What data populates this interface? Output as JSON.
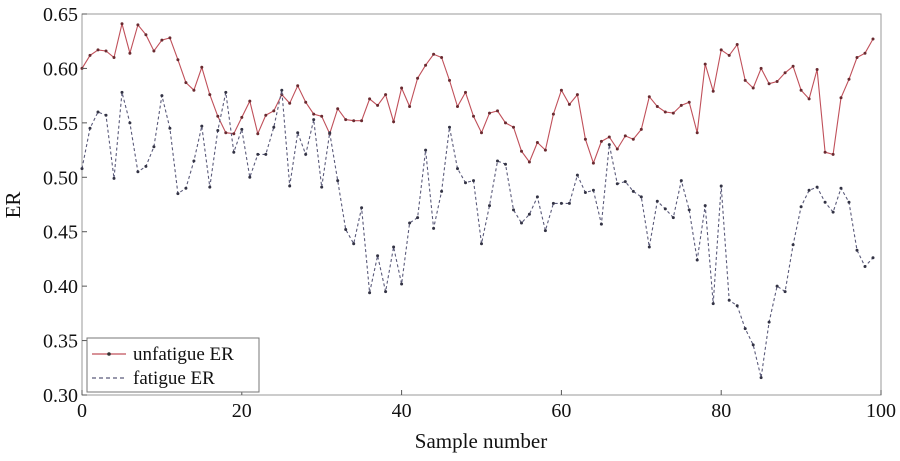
{
  "chart_data": {
    "type": "line",
    "xlabel": "Sample number",
    "ylabel": "ER",
    "xlim": [
      0,
      100
    ],
    "ylim": [
      0.3,
      0.65
    ],
    "xticks": [
      "0",
      "20",
      "40",
      "60",
      "80",
      "100"
    ],
    "yticks": [
      "0.30",
      "0.35",
      "0.40",
      "0.45",
      "0.50",
      "0.55",
      "0.60",
      "0.65"
    ],
    "grid": false,
    "legend_position": "lower-left",
    "x": [
      0,
      1,
      2,
      3,
      4,
      5,
      6,
      7,
      8,
      9,
      10,
      11,
      12,
      13,
      14,
      15,
      16,
      17,
      18,
      19,
      20,
      21,
      22,
      23,
      24,
      25,
      26,
      27,
      28,
      29,
      30,
      31,
      32,
      33,
      34,
      35,
      36,
      37,
      38,
      39,
      40,
      41,
      42,
      43,
      44,
      45,
      46,
      47,
      48,
      49,
      50,
      51,
      52,
      53,
      54,
      55,
      56,
      57,
      58,
      59,
      60,
      61,
      62,
      63,
      64,
      65,
      66,
      67,
      68,
      69,
      70,
      71,
      72,
      73,
      74,
      75,
      76,
      77,
      78,
      79,
      80,
      81,
      82,
      83,
      84,
      85,
      86,
      87,
      88,
      89,
      90,
      91,
      92,
      93,
      94,
      95,
      96,
      97,
      98,
      99
    ],
    "series": [
      {
        "name": "unfatigue ER",
        "style": "solid",
        "marker": "dot",
        "color": "#c0505a",
        "values": [
          0.6,
          0.612,
          0.617,
          0.616,
          0.61,
          0.641,
          0.614,
          0.64,
          0.631,
          0.616,
          0.626,
          0.628,
          0.608,
          0.587,
          0.58,
          0.601,
          0.576,
          0.556,
          0.541,
          0.54,
          0.555,
          0.57,
          0.54,
          0.557,
          0.561,
          0.576,
          0.568,
          0.584,
          0.569,
          0.558,
          0.556,
          0.54,
          0.563,
          0.553,
          0.552,
          0.552,
          0.572,
          0.566,
          0.576,
          0.551,
          0.582,
          0.565,
          0.591,
          0.603,
          0.613,
          0.61,
          0.589,
          0.565,
          0.578,
          0.556,
          0.541,
          0.559,
          0.561,
          0.55,
          0.546,
          0.524,
          0.514,
          0.532,
          0.525,
          0.558,
          0.58,
          0.567,
          0.576,
          0.535,
          0.513,
          0.533,
          0.537,
          0.526,
          0.538,
          0.535,
          0.544,
          0.574,
          0.565,
          0.56,
          0.559,
          0.566,
          0.569,
          0.541,
          0.604,
          0.579,
          0.617,
          0.612,
          0.622,
          0.589,
          0.582,
          0.6,
          0.586,
          0.588,
          0.596,
          0.602,
          0.58,
          0.572,
          0.599,
          0.523,
          0.521,
          0.573,
          0.59,
          0.61,
          0.614,
          0.627
        ]
      },
      {
        "name": "fatigue ER",
        "style": "dashed",
        "marker": "dot",
        "color": "#5a5a7a",
        "values": [
          0.508,
          0.545,
          0.56,
          0.557,
          0.499,
          0.578,
          0.55,
          0.505,
          0.51,
          0.528,
          0.575,
          0.545,
          0.485,
          0.49,
          0.515,
          0.547,
          0.491,
          0.543,
          0.578,
          0.523,
          0.544,
          0.5,
          0.521,
          0.521,
          0.546,
          0.58,
          0.492,
          0.541,
          0.521,
          0.553,
          0.491,
          0.541,
          0.497,
          0.452,
          0.439,
          0.472,
          0.394,
          0.428,
          0.395,
          0.436,
          0.402,
          0.458,
          0.463,
          0.525,
          0.453,
          0.487,
          0.546,
          0.508,
          0.495,
          0.497,
          0.439,
          0.474,
          0.515,
          0.512,
          0.47,
          0.458,
          0.466,
          0.482,
          0.451,
          0.476,
          0.476,
          0.476,
          0.502,
          0.486,
          0.488,
          0.457,
          0.53,
          0.494,
          0.496,
          0.487,
          0.482,
          0.436,
          0.478,
          0.471,
          0.463,
          0.497,
          0.47,
          0.424,
          0.474,
          0.384,
          0.492,
          0.387,
          0.382,
          0.361,
          0.346,
          0.316,
          0.367,
          0.4,
          0.395,
          0.438,
          0.473,
          0.488,
          0.491,
          0.477,
          0.468,
          0.49,
          0.477,
          0.433,
          0.418,
          0.426
        ]
      }
    ]
  }
}
